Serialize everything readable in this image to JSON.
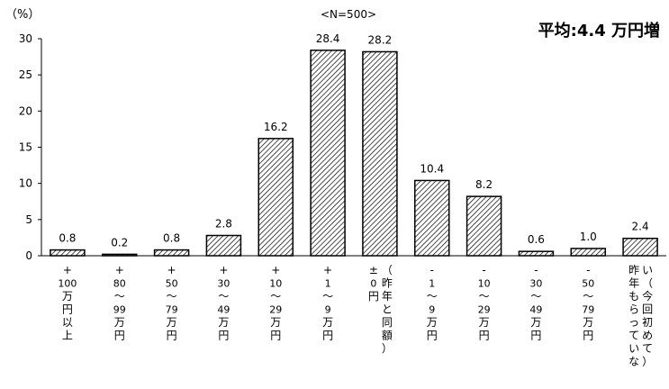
{
  "chart_data": {
    "type": "bar",
    "n_label": "<N=500>",
    "ylabel": "（%）",
    "annotation": "平均:4.4 万円増",
    "ylim": [
      0,
      30
    ],
    "yticks": [
      0,
      5,
      10,
      15,
      20,
      25,
      30
    ],
    "grid": false,
    "legend": "none",
    "bar_fill": "diagonal-hatch",
    "categories": [
      "+100万円以上",
      "+80～99万円",
      "+50～79万円",
      "+30～49万円",
      "+10～29万円",
      "+1～9万円",
      "±0円（昨年と同額）",
      "-1～9万円",
      "-10～29万円",
      "-30～49万円",
      "-50～79万円",
      "昨年もらっていない（今回初めて）"
    ],
    "category_lines": [
      [
        "+",
        "100",
        "万",
        "円",
        "以",
        "上"
      ],
      [
        "+",
        "80",
        "～",
        "99",
        "万",
        "円"
      ],
      [
        "+",
        "50",
        "～",
        "79",
        "万",
        "円"
      ],
      [
        "+",
        "30",
        "～",
        "49",
        "万",
        "円"
      ],
      [
        "+",
        "10",
        "～",
        "29",
        "万",
        "円"
      ],
      [
        "+",
        "1",
        "～",
        "9",
        "万",
        "円"
      ],
      [
        "±",
        "0",
        "円"
      ],
      [
        "-",
        "1",
        "～",
        "9",
        "万",
        "円"
      ],
      [
        "-",
        "10",
        "～",
        "29",
        "万",
        "円"
      ],
      [
        "-",
        "30",
        "～",
        "49",
        "万",
        "円"
      ],
      [
        "-",
        "50",
        "～",
        "79",
        "万",
        "円"
      ],
      [
        "昨",
        "年",
        "も",
        "ら",
        "っ",
        "て",
        "い",
        "な"
      ]
    ],
    "category_side_lines": [
      null,
      null,
      null,
      null,
      null,
      null,
      [
        "（",
        "昨",
        "年",
        "と",
        "同",
        "額",
        "）"
      ],
      null,
      null,
      null,
      null,
      [
        "い",
        "（",
        "今",
        "回",
        "初",
        "め",
        "て",
        "）"
      ]
    ],
    "values": [
      0.8,
      0.2,
      0.8,
      2.8,
      16.2,
      28.4,
      28.2,
      10.4,
      8.2,
      0.6,
      1.0,
      2.4
    ],
    "value_labels": [
      "0.8",
      "0.2",
      "0.8",
      "2.8",
      "16.2",
      "28.4",
      "28.2",
      "10.4",
      "8.2",
      "0.6",
      "1.0",
      "2.4"
    ]
  }
}
